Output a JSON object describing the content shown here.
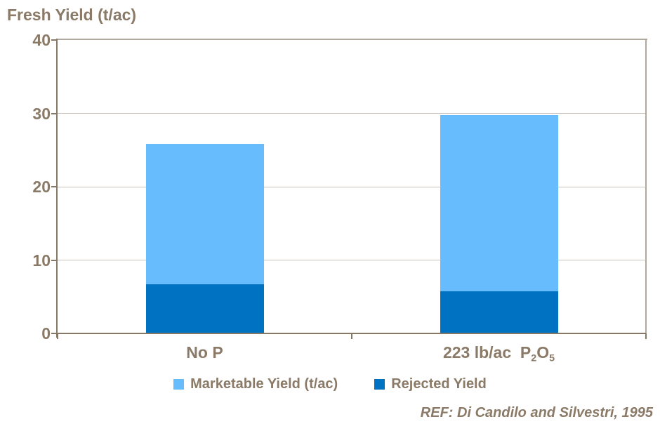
{
  "header": {
    "title": "Fresh Yield (t/ac)"
  },
  "footer": {
    "reference": "REF: Di Candilo and Silvestri, 1995"
  },
  "colors": {
    "marketable": "#66BCFC",
    "rejected": "#0072C2",
    "text": "#8A7A67",
    "gridline": "#CBC3BB",
    "frame": "#B1A89D",
    "axis": "#857866"
  },
  "chart_data": {
    "type": "bar",
    "stacked": true,
    "title": "Fresh Yield (t/ac)",
    "ylabel": "Fresh Yield (t/ac)",
    "xlabel": "",
    "categories": [
      "No P",
      "223 lb/ac  P₂O₅"
    ],
    "categories_rich": [
      [
        {
          "text": "No P"
        }
      ],
      [
        {
          "text": "223 lb/ac  P"
        },
        {
          "text": "2",
          "sub": true
        },
        {
          "text": "O"
        },
        {
          "text": "5",
          "sub": true
        }
      ]
    ],
    "series": [
      {
        "name": "Marketable Yield (t/ac)",
        "values": [
          19.1,
          24.1
        ],
        "color": "#66BCFC"
      },
      {
        "name": "Rejected Yield",
        "values": [
          6.7,
          5.7
        ],
        "color": "#0072C2"
      }
    ],
    "stack_bottom_to_top": [
      "Rejected Yield",
      "Marketable Yield (t/ac)"
    ],
    "totals": [
      25.8,
      29.8
    ],
    "ylim": [
      0,
      40
    ],
    "yticks": [
      0,
      10,
      20,
      30,
      40
    ],
    "grid": "horizontal",
    "legend_position": "bottom"
  },
  "legend": {
    "items": [
      {
        "label": "Marketable Yield (t/ac)",
        "color": "#66BCFC"
      },
      {
        "label": "Rejected Yield",
        "color": "#0072C2"
      }
    ]
  }
}
